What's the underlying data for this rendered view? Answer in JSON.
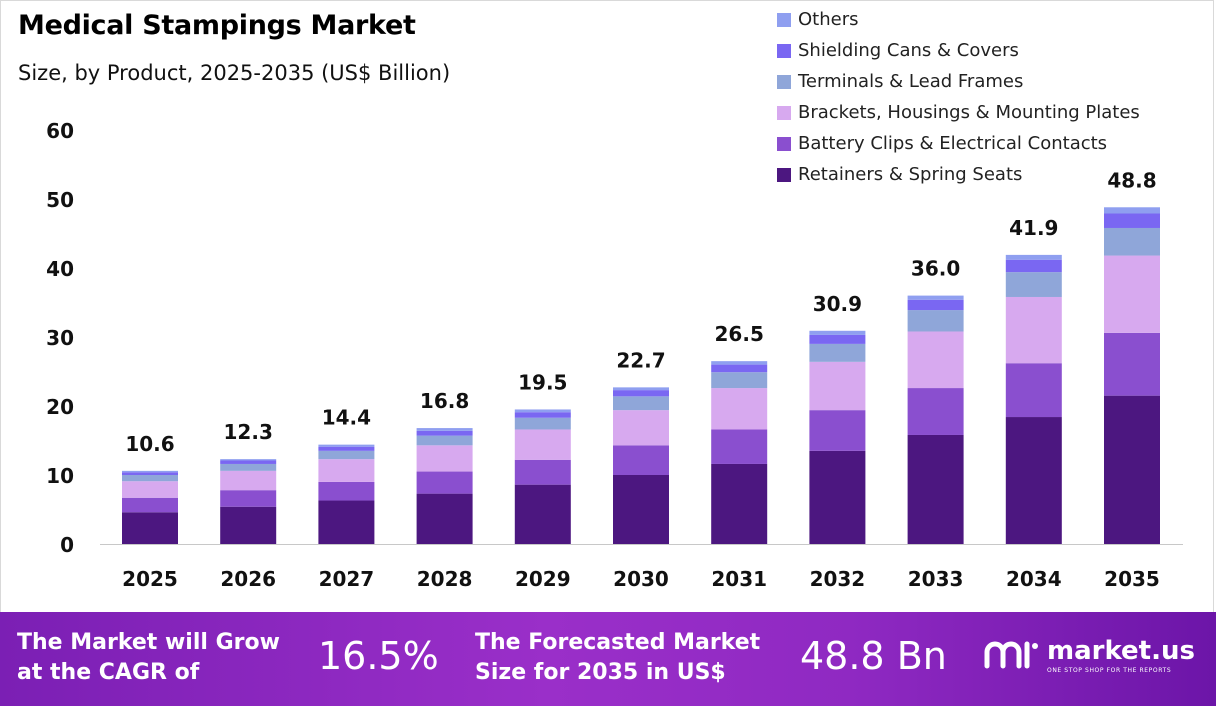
{
  "header": {
    "title": "Medical Stampings Market",
    "subtitle": "Size, by Product, 2025-2035 (US$ Billion)"
  },
  "colors": {
    "Retainers & Spring Seats": "#4c1780",
    "Battery Clips & Electrical Contacts": "#8a4fcf",
    "Brackets, Housings & Mounting Plates": "#d7a9ef",
    "Terminals & Lead Frames": "#8fa6d9",
    "Shielding Cans & Covers": "#7a67f2",
    "Others": "#8f9ff0",
    "footer_bg": "#8a26c0"
  },
  "chart_data": {
    "type": "bar",
    "stacked": true,
    "categories": [
      "2025",
      "2026",
      "2027",
      "2028",
      "2029",
      "2030",
      "2031",
      "2032",
      "2033",
      "2034",
      "2035"
    ],
    "series": [
      {
        "name": "Retainers & Spring Seats",
        "values": [
          4.6,
          5.4,
          6.3,
          7.3,
          8.6,
          10.0,
          11.6,
          13.5,
          15.8,
          18.4,
          21.5
        ]
      },
      {
        "name": "Battery Clips & Electrical Contacts",
        "values": [
          2.1,
          2.4,
          2.7,
          3.2,
          3.6,
          4.3,
          5.0,
          5.9,
          6.8,
          7.8,
          9.1
        ]
      },
      {
        "name": "Brackets, Housings & Mounting Plates",
        "values": [
          2.4,
          2.8,
          3.3,
          3.8,
          4.4,
          5.1,
          6.0,
          7.0,
          8.2,
          9.6,
          11.2
        ]
      },
      {
        "name": "Terminals & Lead Frames",
        "values": [
          0.9,
          1.0,
          1.2,
          1.4,
          1.7,
          2.0,
          2.3,
          2.6,
          3.1,
          3.6,
          4.0
        ]
      },
      {
        "name": "Shielding Cans & Covers",
        "values": [
          0.4,
          0.5,
          0.6,
          0.7,
          0.8,
          0.9,
          1.1,
          1.3,
          1.5,
          1.8,
          2.1
        ]
      },
      {
        "name": "Others",
        "values": [
          0.2,
          0.2,
          0.3,
          0.4,
          0.4,
          0.4,
          0.5,
          0.6,
          0.6,
          0.7,
          0.9
        ]
      }
    ],
    "totals": [
      10.6,
      12.3,
      14.4,
      16.8,
      19.5,
      22.7,
      26.5,
      30.9,
      36.0,
      41.9,
      48.8
    ],
    "total_labels": [
      "10.6",
      "12.3",
      "14.4",
      "16.8",
      "19.5",
      "22.7",
      "26.5",
      "30.9",
      "36.0",
      "41.9",
      "48.8"
    ],
    "y_ticks": [
      0,
      10,
      20,
      30,
      40,
      50,
      60
    ],
    "ylim": [
      0,
      60
    ],
    "legend_position": "top-right",
    "legend_order": [
      "Others",
      "Shielding Cans & Covers",
      "Terminals & Lead Frames",
      "Brackets, Housings & Mounting Plates",
      "Battery Clips & Electrical Contacts",
      "Retainers & Spring Seats"
    ],
    "grid": false
  },
  "footer": {
    "cagr_label": "The Market will Grow at the CAGR of",
    "cagr_value": "16.5%",
    "size_label": "The Forecasted Market Size for 2035 in US$",
    "size_value": "48.8 Bn",
    "brand_name": "market.us",
    "brand_tagline": "ONE STOP SHOP FOR THE REPORTS"
  }
}
